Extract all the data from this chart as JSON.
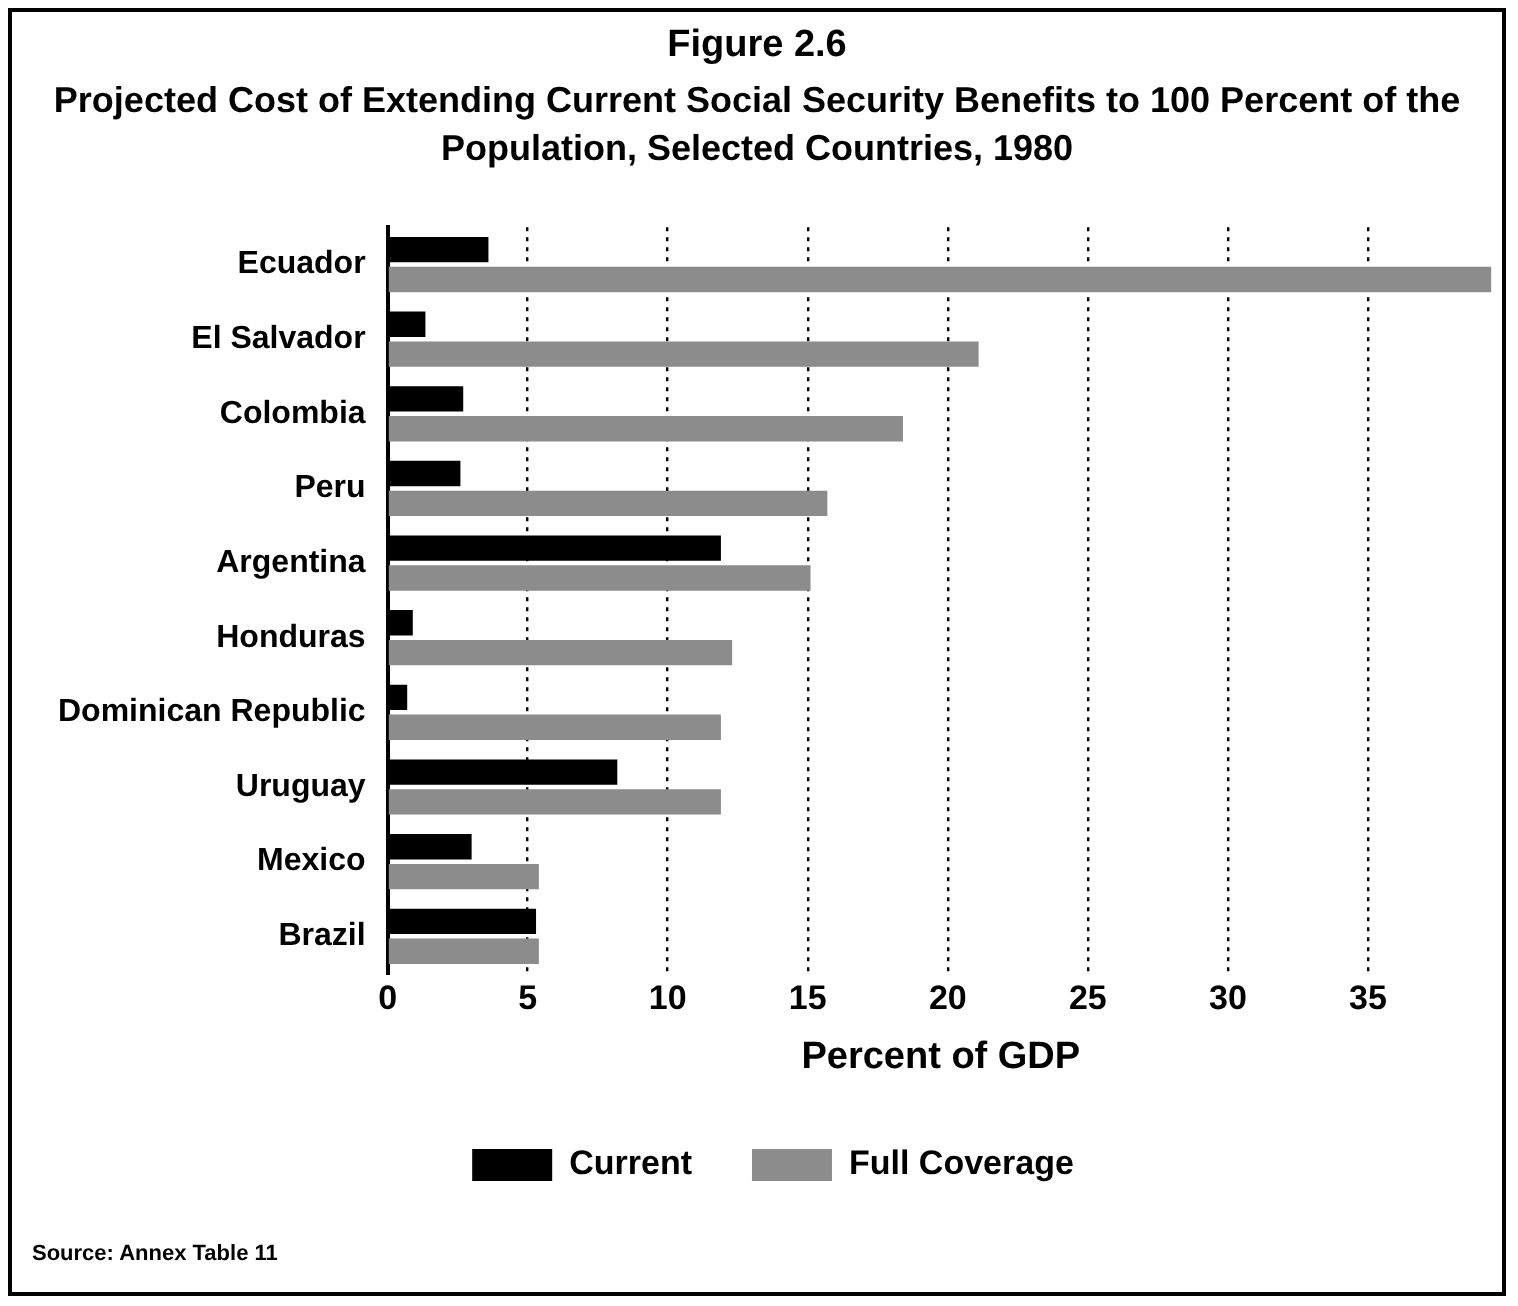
{
  "chart_data": {
    "type": "bar",
    "orientation": "horizontal",
    "title": "Figure 2.6",
    "subtitle": "Projected Cost of Extending Current Social Security Benefits to 100 Percent of the Population, Selected Countries, 1980",
    "categories": [
      "Ecuador",
      "El Salvador",
      "Colombia",
      "Peru",
      "Argentina",
      "Honduras",
      "Dominican Republic",
      "Uruguay",
      "Mexico",
      "Brazil"
    ],
    "series": [
      {
        "name": "Current",
        "color": "#000000",
        "values": [
          3.6,
          1.35,
          2.7,
          2.6,
          11.9,
          0.9,
          0.7,
          8.2,
          3.0,
          5.3
        ]
      },
      {
        "name": "Full Coverage",
        "color": "#8c8c8c",
        "values": [
          39.4,
          21.1,
          18.4,
          15.7,
          15.1,
          12.3,
          11.9,
          11.9,
          5.4,
          5.4
        ]
      }
    ],
    "xlabel": "Percent of GDP",
    "xlim": [
      0,
      39.5
    ],
    "xticks": [
      0,
      5,
      10,
      15,
      20,
      25,
      30,
      35
    ],
    "grid": "x",
    "legend": "bottom",
    "annotations": [
      "Source:  Annex Table 11"
    ]
  }
}
